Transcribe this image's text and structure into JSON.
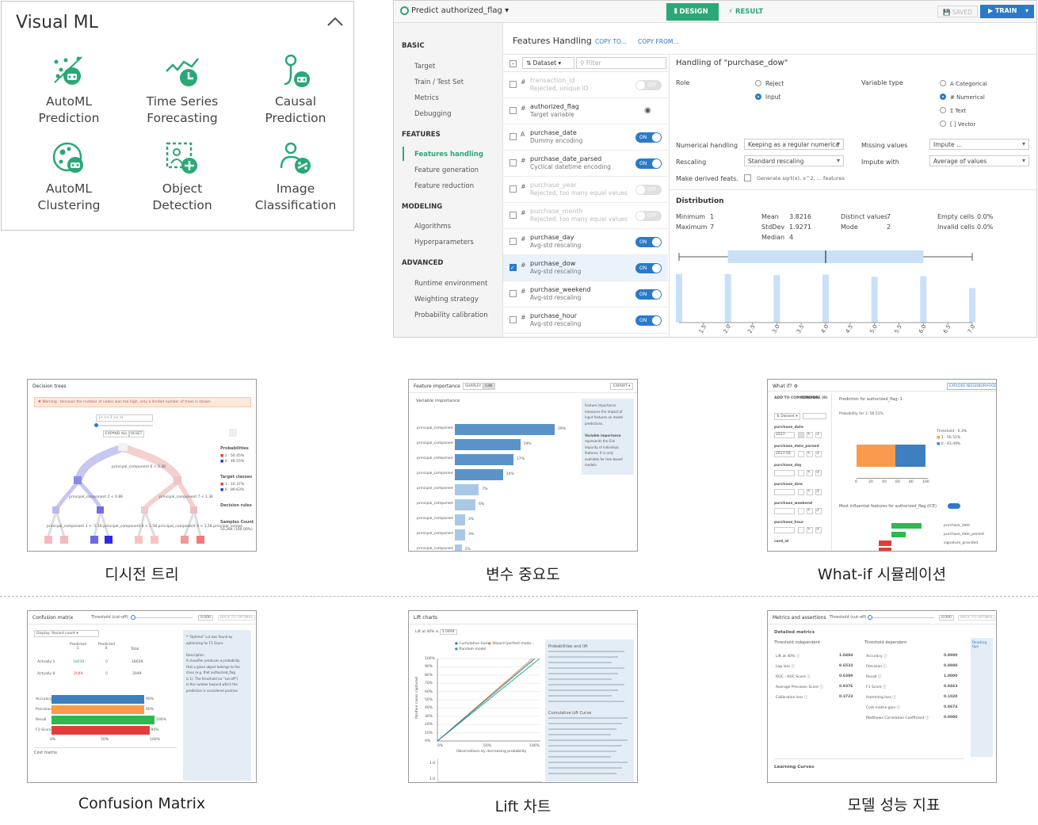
{
  "visual_ml": {
    "title": "Visual ML",
    "items": [
      {
        "label": "AutoML\nPrediction",
        "icon": "automl-prediction-icon"
      },
      {
        "label": "Time Series\nForecasting",
        "icon": "time-series-icon"
      },
      {
        "label": "Causal\nPrediction",
        "icon": "causal-prediction-icon"
      },
      {
        "label": "AutoML\nClustering",
        "icon": "automl-clustering-icon"
      },
      {
        "label": "Object\nDetection",
        "icon": "object-detection-icon"
      },
      {
        "label": "Image\nClassification",
        "icon": "image-classification-icon"
      }
    ],
    "accent": "#2aa876"
  },
  "dss": {
    "task_title": "Predict authorized_flag",
    "tabs": {
      "design": "DESIGN",
      "result": "RESULT"
    },
    "saved": "SAVED",
    "train": "TRAIN",
    "nav": {
      "basic": "BASIC",
      "basic_items": [
        "Target",
        "Train / Test Set",
        "Metrics",
        "Debugging"
      ],
      "features": "FEATURES",
      "features_items": [
        "Features handling",
        "Feature generation",
        "Feature reduction"
      ],
      "modeling": "MODELING",
      "modeling_items": [
        "Algorithms",
        "Hyperparameters"
      ],
      "advanced": "ADVANCED",
      "advanced_items": [
        "Runtime environment",
        "Weighting strategy",
        "Probability calibration"
      ]
    },
    "header": {
      "title": "Features Handling",
      "copy_to": "COPY TO...",
      "copy_from": "COPY FROM..."
    },
    "list_toolbar": {
      "dataset": "Dataset",
      "filter_placeholder": "Filter"
    },
    "features": [
      {
        "type": "#",
        "name": "transaction_id",
        "sub": "Rejected, unique ID",
        "state": "OFF",
        "disabled": true
      },
      {
        "type": "#",
        "name": "authorized_flag",
        "sub": "Target variable",
        "state": "target",
        "disabled": false
      },
      {
        "type": "A",
        "name": "purchase_date",
        "sub": "Dummy encoding",
        "state": "ON",
        "disabled": false
      },
      {
        "type": "#",
        "name": "purchase_date_parsed",
        "sub": "Cyclical datetime encoding",
        "state": "ON",
        "disabled": false
      },
      {
        "type": "#",
        "name": "purchase_year",
        "sub": "Rejected, too many equal values",
        "state": "OFF",
        "disabled": true
      },
      {
        "type": "#",
        "name": "purchase_month",
        "sub": "Rejected, too many equal values",
        "state": "OFF",
        "disabled": true
      },
      {
        "type": "#",
        "name": "purchase_day",
        "sub": "Avg-std rescaling",
        "state": "ON",
        "disabled": false
      },
      {
        "type": "#",
        "name": "purchase_dow",
        "sub": "Avg-std rescaling",
        "state": "ON",
        "disabled": false,
        "selected": true
      },
      {
        "type": "#",
        "name": "purchase_weekend",
        "sub": "Avg-std rescaling",
        "state": "ON",
        "disabled": false
      },
      {
        "type": "#",
        "name": "purchase_hour",
        "sub": "Avg-std rescaling",
        "state": "ON",
        "disabled": false
      }
    ],
    "detail": {
      "title": "Handling of \"purchase_dow\"",
      "role_label": "Role",
      "role_options": [
        "Reject",
        "Input"
      ],
      "variable_type_label": "Variable type",
      "variable_types": [
        "A Categorical",
        "# Numerical",
        "Ɪ Text",
        "[ ] Vector"
      ],
      "numerical_handling_label": "Numerical handling",
      "numerical_handling_value": "Keeping as a regular numerica",
      "rescaling_label": "Rescaling",
      "rescaling_value": "Standard rescaling",
      "derived_label": "Make derived feats.",
      "derived_hint": "Generate sqrt(x), x^2, ... features",
      "missing_label": "Missing values",
      "missing_value": "Impute ...",
      "impute_label": "Impute with",
      "impute_value": "Average of values",
      "distribution_title": "Distribution",
      "stats": {
        "min_label": "Minimum",
        "min": "1",
        "max_label": "Maximum",
        "max": "7",
        "mean_label": "Mean",
        "mean": "3.8216",
        "std_label": "StdDev",
        "std": "1.9271",
        "median_label": "Median",
        "median": "4",
        "distinct_label": "Distinct values",
        "distinct": "7",
        "mode_label": "Mode",
        "mode": "2",
        "empty_label": "Empty cells",
        "empty": "0.0%",
        "invalid_label": "Invalid cells",
        "invalid": "0.0%"
      },
      "hist_ticks": [
        "1.5",
        "2.0",
        "2.5",
        "3.0",
        "3.5",
        "4.0",
        "4.5",
        "5.0",
        "5.5",
        "6.0",
        "6.5",
        "7.0"
      ],
      "hist_values": [
        0.9,
        0.9,
        0.88,
        0.89,
        0.85,
        0.86,
        0.64
      ]
    }
  },
  "thumbs": {
    "decision_tree": {
      "title": "Decision trees",
      "warning": "✖ Warning : because the number of nodes was too high, only a limited number of trees is shown.",
      "expand": "EXPAND ALL",
      "reset": "RESET",
      "probabilities": "Probabilities",
      "p1": "1 : 50.45%",
      "p0": "0 : 49.55%",
      "target_classes": "Target classes",
      "t1": "1 : 10.37%",
      "t0": "0 : 89.63%",
      "rules": "Decision rules",
      "samples": "Samples Count",
      "samples_val": "50,284 (100.00%)",
      "split_root": "principal_component 6 < 0.36",
      "split_l": "principal_component 2 < 0.86",
      "split_r": "principal_component 7 < 1.36",
      "split_bottom": "principal_component 3 < -1.18 principal_component 8 < 1.58 principal_component 4 < 1.58 principal_compo"
    },
    "feature_importance": {
      "title": "Feature importance",
      "shapley": "SHAPLEY",
      "gini": "GINI",
      "export": "EXPORT ▾",
      "subtitle": "Variable importance",
      "rows": [
        {
          "label": "principal_component 6",
          "pct": "29%",
          "v": 29
        },
        {
          "label": "principal_component 9",
          "pct": "19%",
          "v": 19
        },
        {
          "label": "principal_component 8",
          "pct": "17%",
          "v": 17
        },
        {
          "label": "principal_component 5",
          "pct": "14%",
          "v": 14
        },
        {
          "label": "principal_component 4",
          "pct": "7%",
          "v": 7
        },
        {
          "label": "principal_component 7",
          "pct": "6%",
          "v": 6
        },
        {
          "label": "principal_component 3",
          "pct": "3%",
          "v": 3
        },
        {
          "label": "principal_component 0",
          "pct": "3%",
          "v": 3
        },
        {
          "label": "principal_component 1",
          "pct": "2%",
          "v": 2
        }
      ],
      "info_lines": [
        "Feature importance",
        "measures the impact of",
        "input features on model",
        "predictions.",
        "",
        "Variable importance",
        "represents the Gini",
        "impurity of individual",
        "features. It is only",
        "available for tree-based",
        "models."
      ]
    },
    "whatif": {
      "title": "What if?",
      "explore": "EXPLORE NEIGHBORHOOD",
      "add": "ADD TO COMPARATOR",
      "compare": "COMPARE (0)",
      "dataset": "Dataset",
      "prediction": "Prediction for authorized_flag: 1",
      "probability": "Probability for 1: 56.51%",
      "threshold": "Threshold - 0.3%",
      "l1": "1 - 56.51%",
      "l0": "0 - 43.49%",
      "influential": "Most influential features for authorized_flag (ICE)",
      "features": [
        "purchase_date",
        "purchase_date_parsed",
        "purchase_day",
        "purchase_dow",
        "purchase_weekend",
        "purchase_hour",
        "card_id"
      ],
      "values": [
        "2017-",
        "2017-04",
        "",
        "",
        "",
        "",
        ""
      ],
      "infl_labels": [
        "purchase_date",
        "purchase_date_parsed",
        "signature_provided"
      ],
      "x_ticks": [
        "0",
        "20",
        "40",
        "60",
        "80",
        "100"
      ]
    },
    "confusion": {
      "title": "Confusion matrix",
      "threshold": "Threshold (cut-off)",
      "thr_val": "0.000",
      "back": "BACK TO OPTIMAL",
      "display": "Display: Record count",
      "pred1": "Predicted 1",
      "pred0": "Predicted 0",
      "total": "Total",
      "act1": "Actually 1",
      "act0": "Actually 0",
      "cells": [
        "18039",
        "0",
        "18039",
        "2049",
        "0",
        "2049"
      ],
      "metrics": [
        [
          "Accuracy",
          "90%"
        ],
        [
          "Precision",
          "90%"
        ],
        [
          "Recall",
          "100%"
        ],
        [
          "F1-Score",
          "95%"
        ]
      ],
      "axis": [
        "0%",
        "50%",
        "100%"
      ],
      "cost": "Cost matrix",
      "info_lines": [
        "* \"Optimal\" cut was found by",
        "optimizing for F1 Score.",
        "",
        "Description",
        "A classifier produces a probability",
        "that a given object belongs to the",
        "class (e.g. that authorized_flag",
        "is 1). The threshold (or \"cut-off\")",
        "is the number beyond which the",
        "prediction is considered positive."
      ]
    },
    "lift": {
      "title": "Lift charts",
      "lift_at": "Lift at 40% is",
      "lift_val": "1.0494",
      "legend": [
        "Cumulative Gain",
        "Wizard (perfect mode...",
        "Random model"
      ],
      "ylabel": "Positive cases captured",
      "xlabel": "Observations by decreasing probability",
      "y_ticks": [
        "100%",
        "90%",
        "80%",
        "70%",
        "60%",
        "50%",
        "40%",
        "30%",
        "20%",
        "10%",
        "0%"
      ],
      "x_ticks": [
        "0%",
        "50%",
        "100%"
      ],
      "info_title": "Probabilities and lift",
      "info_title2": "Cumulative Lift Curve"
    },
    "metrics": {
      "title": "Metrics and assertions",
      "threshold": "Threshold (cut-off)",
      "thr_val": "0.000",
      "back": "BACK TO OPTIMAL",
      "detailed": "Detailed metrics",
      "indep": "Threshold independent",
      "dep": "Threshold dependent",
      "left": [
        [
          "Lift at 40%",
          "1.0494"
        ],
        [
          "Log loss",
          "0.6533"
        ],
        [
          "ROC - AUC Score",
          "0.6389"
        ],
        [
          "Average Precision Score",
          "0.9376"
        ],
        [
          "Calibration loss",
          "0.3723"
        ]
      ],
      "right": [
        [
          "Accuracy",
          "0.8980"
        ],
        [
          "Precision",
          "0.8980"
        ],
        [
          "Recall",
          "1.0000"
        ],
        [
          "F1 Score",
          "0.9463"
        ],
        [
          "Hamming loss",
          "0.1020"
        ],
        [
          "Cost matrix gain",
          "0.8674"
        ],
        [
          "Matthews Correlation Coefficient",
          "0.0000"
        ]
      ],
      "learning": "Learning Curves",
      "tips_title": "Reading tips"
    }
  },
  "captions": {
    "c1": "디시전 트리",
    "c2": "변수 중요도",
    "c3": "What-if 시뮬레이션",
    "c4": "Confusion Matrix",
    "c5": "Lift 차트",
    "c6": "모델 성능 지표"
  }
}
